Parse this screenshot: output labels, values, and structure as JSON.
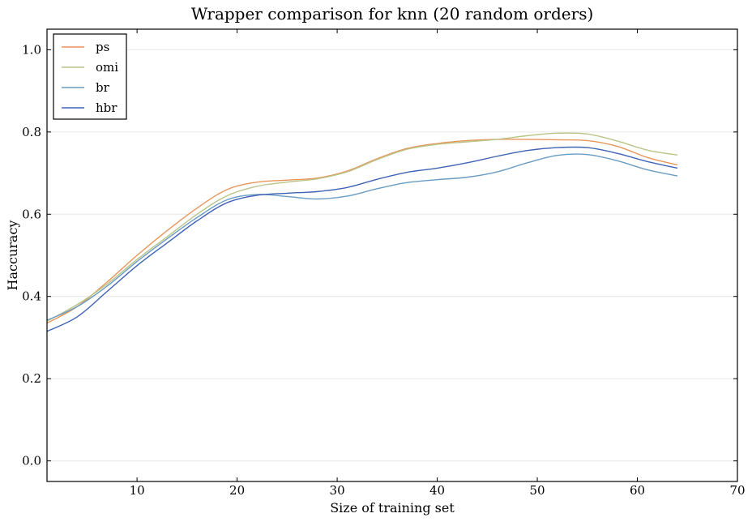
{
  "chart_data": {
    "type": "line",
    "title": "Wrapper comparison for knn (20 random orders)",
    "xlabel": "Size of training set",
    "ylabel": "Haccuracy",
    "xlim": [
      1,
      70
    ],
    "ylim": [
      -0.05,
      1.05
    ],
    "xticks": [
      10,
      20,
      30,
      40,
      50,
      60,
      70
    ],
    "yticks": [
      0.0,
      0.2,
      0.4,
      0.6,
      0.8,
      1.0
    ],
    "ytick_labels": [
      "0.0",
      "0.2",
      "0.4",
      "0.6",
      "0.8",
      "1.0"
    ],
    "grid": "horizontal",
    "legend_position": "top-left",
    "series": [
      {
        "name": "ps",
        "color": "#E8955A",
        "x": [
          1,
          4,
          7,
          10,
          13,
          16,
          19,
          22,
          25,
          28,
          31,
          34,
          37,
          40,
          43,
          46,
          49,
          52,
          55,
          58,
          61,
          64
        ],
        "y": [
          0.335,
          0.375,
          0.435,
          0.5,
          0.56,
          0.615,
          0.66,
          0.678,
          0.683,
          0.688,
          0.705,
          0.735,
          0.76,
          0.772,
          0.779,
          0.782,
          0.782,
          0.781,
          0.779,
          0.765,
          0.738,
          0.72
        ]
      },
      {
        "name": "omi",
        "color": "#B9C487",
        "x": [
          1,
          4,
          7,
          10,
          13,
          16,
          19,
          22,
          25,
          28,
          31,
          34,
          37,
          40,
          43,
          46,
          49,
          52,
          55,
          58,
          61,
          64
        ],
        "y": [
          0.34,
          0.38,
          0.43,
          0.49,
          0.545,
          0.6,
          0.645,
          0.668,
          0.678,
          0.686,
          0.703,
          0.733,
          0.758,
          0.77,
          0.776,
          0.782,
          0.791,
          0.797,
          0.795,
          0.778,
          0.756,
          0.744
        ]
      },
      {
        "name": "br",
        "color": "#6A9CC2",
        "x": [
          1,
          4,
          7,
          10,
          13,
          16,
          19,
          22,
          25,
          28,
          31,
          34,
          37,
          40,
          43,
          46,
          49,
          52,
          55,
          58,
          61,
          64
        ],
        "y": [
          0.342,
          0.375,
          0.425,
          0.485,
          0.54,
          0.592,
          0.635,
          0.648,
          0.643,
          0.637,
          0.644,
          0.662,
          0.677,
          0.684,
          0.69,
          0.703,
          0.725,
          0.743,
          0.745,
          0.73,
          0.708,
          0.693
        ]
      },
      {
        "name": "hbr",
        "color": "#3F63B5",
        "x": [
          1,
          4,
          7,
          10,
          13,
          16,
          19,
          22,
          25,
          28,
          31,
          34,
          37,
          40,
          43,
          46,
          49,
          52,
          55,
          58,
          61,
          64
        ],
        "y": [
          0.315,
          0.35,
          0.412,
          0.475,
          0.53,
          0.584,
          0.628,
          0.646,
          0.651,
          0.655,
          0.665,
          0.685,
          0.702,
          0.712,
          0.725,
          0.741,
          0.755,
          0.762,
          0.762,
          0.748,
          0.728,
          0.712
        ]
      }
    ]
  }
}
